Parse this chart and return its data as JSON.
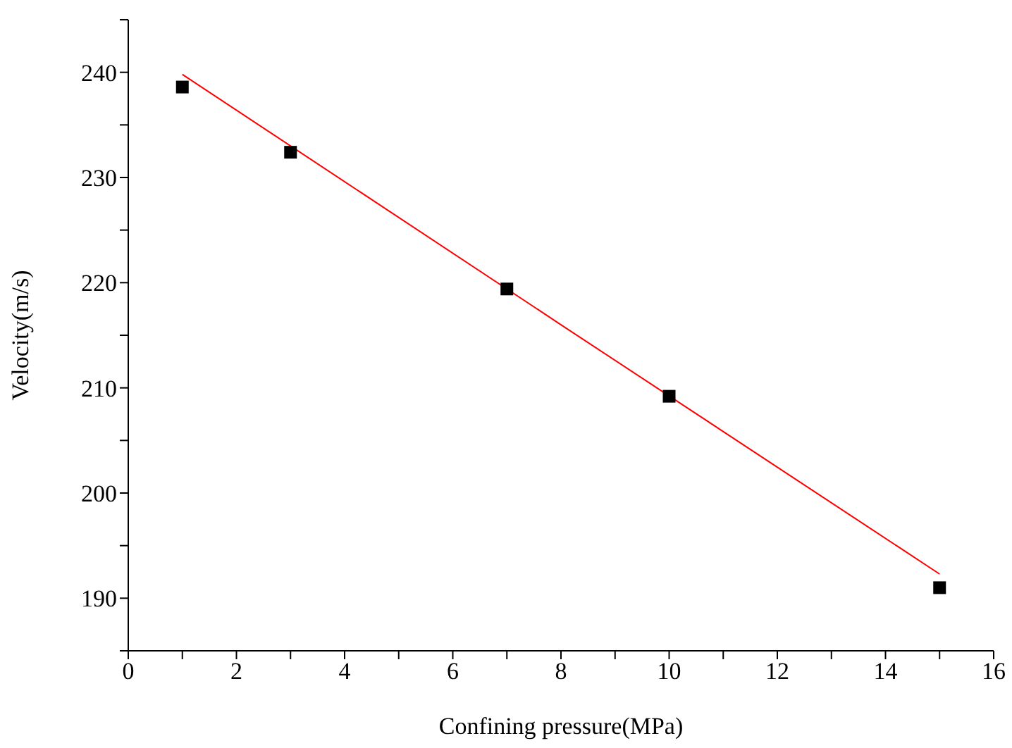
{
  "chart_data": {
    "type": "scatter",
    "xlabel": "Confining pressure(MPa)",
    "ylabel": "Velocity(m/s)",
    "marker": "square",
    "grid": false,
    "legend": false,
    "xlim": [
      0,
      16
    ],
    "xticks": [
      0,
      {
        "value": 1,
        "label": null
      },
      2,
      {
        "value": 3,
        "label": null
      },
      4,
      {
        "value": 5,
        "label": null
      },
      6,
      {
        "value": 7,
        "label": null
      },
      8,
      {
        "value": 9,
        "label": null
      },
      10,
      {
        "value": 11,
        "label": null
      },
      12,
      {
        "value": 13,
        "label": null
      },
      14,
      {
        "value": 15,
        "label": null
      },
      16
    ],
    "ylim": [
      185,
      245
    ],
    "yticks": [
      {
        "value": 185,
        "label": null
      },
      190,
      {
        "value": 195,
        "label": null
      },
      200,
      {
        "value": 205,
        "label": null
      },
      210,
      {
        "value": 215,
        "label": null
      },
      220,
      {
        "value": 225,
        "label": null
      },
      230,
      {
        "value": 235,
        "label": null
      },
      240,
      {
        "value": 245,
        "label": null
      }
    ],
    "series": [
      {
        "type": "scatter",
        "color": "#000000",
        "x": [
          1,
          3,
          7,
          10,
          15
        ],
        "values": [
          238.6,
          232.4,
          219.4,
          209.2,
          191.0
        ]
      },
      {
        "type": "line",
        "color": "#ff0000",
        "marker": "none",
        "x": [
          1,
          8,
          15
        ],
        "values": [
          239.8,
          216.0,
          192.3
        ]
      }
    ]
  }
}
